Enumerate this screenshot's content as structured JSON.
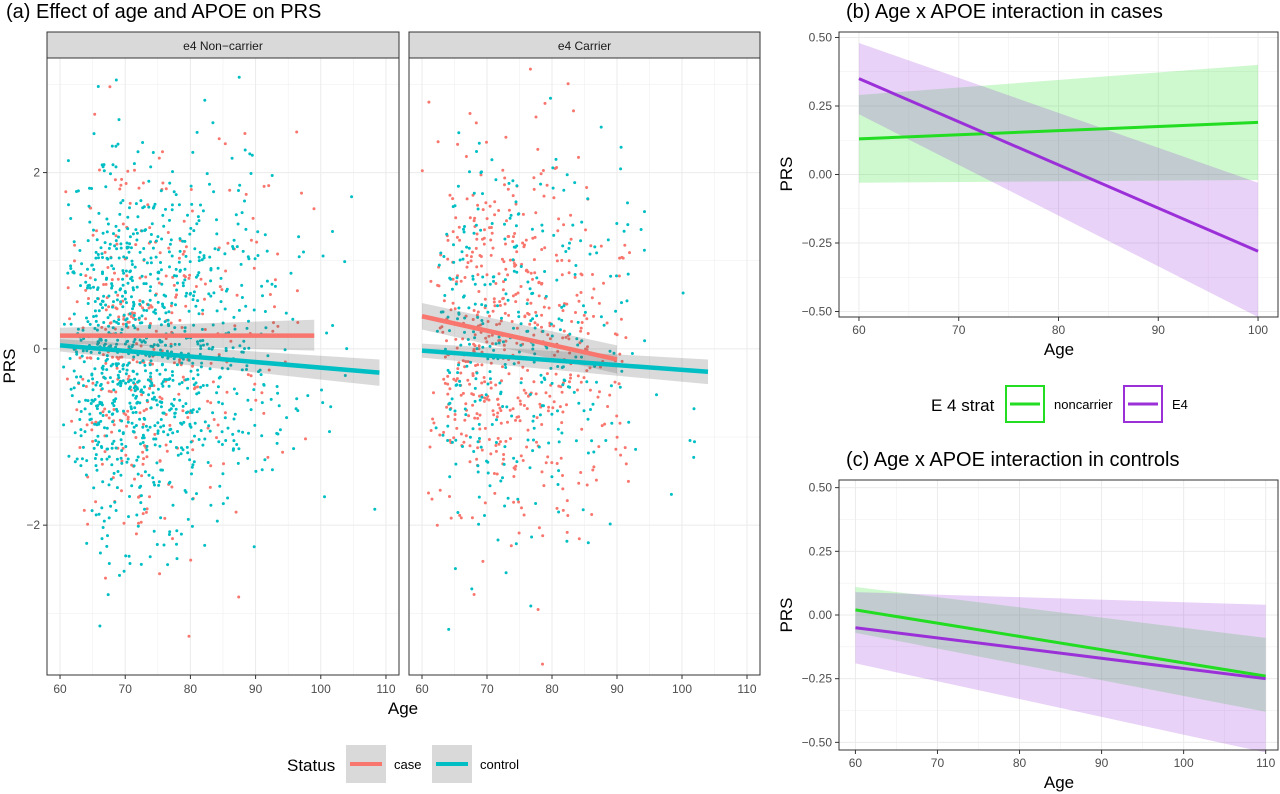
{
  "chart_data": [
    {
      "panel": "(a)",
      "type": "scatter",
      "title": "(a) Effect of age and APOE on PRS",
      "xlabel": "Age",
      "ylabel": "PRS",
      "xlim": [
        58,
        112
      ],
      "ylim": [
        -3.7,
        3.3
      ],
      "grid": true,
      "facets": [
        {
          "label": "e4 Non−carrier",
          "xticks": [
            60,
            70,
            80,
            90,
            100,
            110
          ]
        },
        {
          "label": "e4 Carrier",
          "xticks": [
            60,
            70,
            80,
            90,
            100,
            110
          ]
        }
      ],
      "yticks": [
        {
          "v": -2,
          "l": "−2"
        },
        {
          "v": 0,
          "l": "0"
        },
        {
          "v": 2,
          "l": "2"
        }
      ],
      "legend": {
        "title": "Status",
        "position": "bottom",
        "entries": [
          "case",
          "control"
        ]
      },
      "series": [
        {
          "name": "case",
          "color": "#F8766D",
          "facet_lines": [
            {
              "x": [
                60,
                99
              ],
              "y": [
                0.15,
                0.15
              ],
              "ci": [
                [
                  0.06,
                  0.24
                ],
                [
                  -0.02,
                  0.33
                ]
              ]
            },
            {
              "x": [
                60,
                90
              ],
              "y": [
                0.37,
                -0.12
              ],
              "ci": [
                [
                  0.22,
                  0.52
                ],
                [
                  -0.28,
                  0.04
                ]
              ]
            }
          ]
        },
        {
          "name": "control",
          "color": "#00BFC4",
          "facet_lines": [
            {
              "x": [
                60,
                109
              ],
              "y": [
                0.04,
                -0.27
              ],
              "ci": [
                [
                  -0.03,
                  0.11
                ],
                [
                  -0.42,
                  -0.12
                ]
              ]
            },
            {
              "x": [
                60,
                104
              ],
              "y": [
                -0.02,
                -0.26
              ],
              "ci": [
                [
                  -0.1,
                  0.06
                ],
                [
                  -0.4,
                  -0.12
                ]
              ]
            }
          ]
        }
      ]
    },
    {
      "panel": "(b)",
      "type": "line",
      "title": "(b) Age x APOE interaction in cases",
      "xlabel": "Age",
      "ylabel": "PRS",
      "xlim": [
        58,
        102
      ],
      "ylim": [
        -0.52,
        0.52
      ],
      "grid": true,
      "xticks": [
        60,
        70,
        80,
        90,
        100
      ],
      "yticks": [
        {
          "v": 0.5,
          "l": "0.50"
        },
        {
          "v": 0.25,
          "l": "0.25"
        },
        {
          "v": 0,
          "l": "0.00"
        },
        {
          "v": -0.25,
          "l": "−0.25"
        },
        {
          "v": -0.5,
          "l": "−0.50"
        }
      ],
      "series": [
        {
          "name": "noncarrier",
          "color": "#22DD22",
          "x": [
            60,
            100
          ],
          "y": [
            0.13,
            0.19
          ],
          "ci_lower": [
            -0.03,
            -0.02
          ],
          "ci_upper": [
            0.29,
            0.4
          ]
        },
        {
          "name": "E4",
          "color": "#9B30D9",
          "x": [
            60,
            100
          ],
          "y": [
            0.35,
            -0.28
          ],
          "ci_lower": [
            0.22,
            -0.52
          ],
          "ci_upper": [
            0.48,
            -0.03
          ]
        }
      ]
    },
    {
      "panel": "(c)",
      "type": "line",
      "title": "(c) Age x APOE interaction in controls",
      "xlabel": "Age",
      "ylabel": "PRS",
      "xlim": [
        58,
        111.5
      ],
      "ylim": [
        -0.53,
        0.53
      ],
      "grid": true,
      "xticks": [
        60,
        70,
        80,
        90,
        100,
        110
      ],
      "yticks": [
        {
          "v": 0.5,
          "l": "0.50"
        },
        {
          "v": 0.25,
          "l": "0.25"
        },
        {
          "v": 0,
          "l": "0.00"
        },
        {
          "v": -0.25,
          "l": "−0.25"
        },
        {
          "v": -0.5,
          "l": "−0.50"
        }
      ],
      "series": [
        {
          "name": "noncarrier",
          "color": "#22DD22",
          "x": [
            60,
            110
          ],
          "y": [
            0.02,
            -0.24
          ],
          "ci_lower": [
            -0.07,
            -0.38
          ],
          "ci_upper": [
            0.11,
            -0.09
          ]
        },
        {
          "name": "E4",
          "color": "#9B30D9",
          "x": [
            60,
            110
          ],
          "y": [
            -0.05,
            -0.25
          ],
          "ci_lower": [
            -0.19,
            -0.54
          ],
          "ci_upper": [
            0.09,
            0.04
          ]
        }
      ]
    }
  ],
  "legend_bc": {
    "title": "E 4 strat",
    "entries": [
      "noncarrier",
      "E4"
    ]
  }
}
